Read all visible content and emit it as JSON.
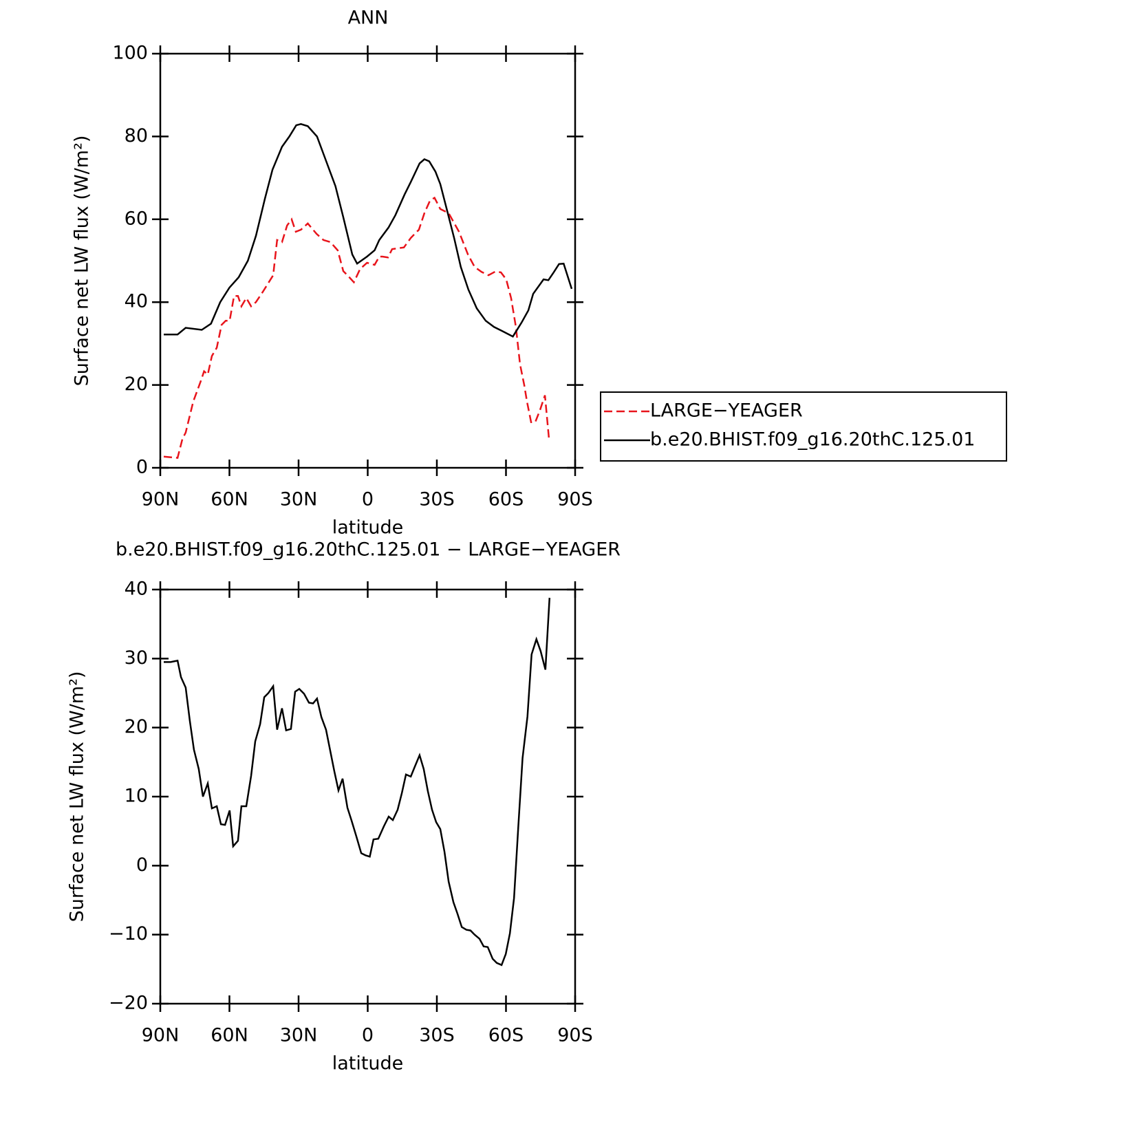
{
  "chart_data": [
    {
      "type": "line",
      "title": "ANN",
      "xlabel": "latitude",
      "ylabel": "Surface net LW flux (W/m²)",
      "xlim": [
        90,
        -90
      ],
      "ylim": [
        0,
        100
      ],
      "xticks": [
        {
          "value": 90,
          "label": "90N"
        },
        {
          "value": 60,
          "label": "60N"
        },
        {
          "value": 30,
          "label": "30N"
        },
        0,
        {
          "value": -30,
          "label": "30S"
        },
        {
          "value": -60,
          "label": "60S"
        },
        {
          "value": -90,
          "label": "90S"
        }
      ],
      "yticks": [
        0,
        20,
        40,
        60,
        80,
        100
      ],
      "legend": "right",
      "series": [
        {
          "name": "LARGE−YEAGER",
          "color": "#e8141b",
          "dash": true,
          "x": [
            88.5,
            82.5,
            80.4,
            79,
            75.7,
            72.4,
            71,
            69.4,
            67.6,
            65.5,
            63.4,
            61.6,
            59.9,
            58,
            56.3,
            54.8,
            52.7,
            50.6,
            48.5,
            45.5,
            41,
            39.3,
            37.2,
            35,
            33,
            31.2,
            29,
            26,
            22.2,
            19.2,
            16.2,
            13,
            10.6,
            8.8,
            6,
            3.3,
            0.3,
            -3,
            -5,
            -6.4,
            -8.8,
            -10.6,
            -15.7,
            -18.7,
            -22.2,
            -24.6,
            -27,
            -29,
            -31.5,
            -35.1,
            -39.6,
            -43.5,
            -46.4,
            -49.4,
            -52.4,
            -55.4,
            -57.8,
            -60.1,
            -62.2,
            -64.3,
            -66.1,
            -67.9,
            -69.1,
            -70.9,
            -72.7,
            -74.8,
            -76.9,
            -78.7
          ],
          "values": [
            2.7,
            2.4,
            7,
            8.5,
            16,
            21,
            23.3,
            22.5,
            27,
            29,
            34.5,
            35.5,
            35.5,
            41.5,
            41.5,
            39,
            41,
            39,
            40,
            42.5,
            46.5,
            55,
            54.5,
            58.5,
            60,
            57,
            57.5,
            59,
            56.5,
            55,
            54.5,
            52.5,
            47.5,
            46.5,
            44.8,
            48,
            49.5,
            49,
            51,
            51,
            50.8,
            52.8,
            53.2,
            55.5,
            57.5,
            61.5,
            64.5,
            65.2,
            62.5,
            61.5,
            57,
            51.5,
            48.5,
            47.3,
            46.5,
            47.4,
            47.2,
            45.5,
            41,
            34,
            25,
            20,
            16,
            11,
            11,
            14,
            17.5,
            6.8
          ]
        },
        {
          "name": "b.e20.BHIST.f09_g16.20thC.125.01",
          "color": "#000000",
          "dash": false,
          "x": [
            88.5,
            82.5,
            79,
            72,
            68,
            64,
            60,
            56,
            52,
            48.5,
            44.6,
            41.3,
            37.2,
            34,
            31,
            29,
            26,
            22,
            18,
            14,
            10.6,
            6.7,
            4.6,
            0.3,
            -3,
            -5,
            -9,
            -12,
            -16,
            -18.7,
            -22.5,
            -24.6,
            -26.7,
            -29.4,
            -31.5,
            -34.5,
            -37.5,
            -40.4,
            -43.7,
            -47.3,
            -51.2,
            -54.8,
            -58.4,
            -63,
            -66.7,
            -69.7,
            -71.8,
            -76.3,
            -78.4,
            -80.7,
            -83,
            -85,
            -88.5
          ],
          "values": [
            32.2,
            32.2,
            33.8,
            33.3,
            34.8,
            40,
            43.5,
            46,
            50,
            56,
            65,
            72,
            77.5,
            80,
            82.7,
            83,
            82.5,
            80,
            74,
            68,
            60.5,
            51.5,
            49.3,
            51,
            52.5,
            55,
            58,
            61,
            66,
            69,
            73.5,
            74.5,
            74,
            71.5,
            68.5,
            62,
            55.5,
            48.5,
            43,
            38.5,
            35.5,
            34,
            33,
            31.7,
            35,
            38,
            42,
            45.5,
            45.3,
            47.2,
            49.2,
            49.3,
            43.2
          ]
        }
      ]
    },
    {
      "type": "line",
      "title": "b.e20.BHIST.f09_g16.20thC.125.01 − LARGE−YEAGER",
      "xlabel": "latitude",
      "ylabel": "Surface net LW flux (W/m²)",
      "xlim": [
        90,
        -90
      ],
      "ylim": [
        -20,
        40
      ],
      "xticks": [
        {
          "value": 90,
          "label": "90N"
        },
        {
          "value": 60,
          "label": "60N"
        },
        {
          "value": 30,
          "label": "30N"
        },
        0,
        {
          "value": -30,
          "label": "30S"
        },
        {
          "value": -60,
          "label": "60S"
        },
        {
          "value": -90,
          "label": "90S"
        }
      ],
      "yticks": [
        {
          "value": -20,
          "label": "−20"
        },
        {
          "value": -10,
          "label": "−10"
        },
        0,
        10,
        20,
        30,
        40
      ],
      "series": [
        {
          "color": "#000000",
          "dash": false,
          "x": [
            88.5,
            85.5,
            82.5,
            81,
            79,
            77.2,
            75.4,
            73.3,
            71.5,
            69.4,
            67.6,
            65.5,
            63.7,
            61.9,
            59.9,
            58.4,
            56.3,
            54.8,
            52.7,
            50.6,
            48.8,
            46.7,
            44.9,
            43.1,
            41,
            39.3,
            37.2,
            35.4,
            33.3,
            31.5,
            29.7,
            27.6,
            25.5,
            23.7,
            22,
            20.1,
            18.1,
            16.3,
            14.5,
            12.7,
            10.9,
            8.8,
            7,
            4.9,
            2.8,
            1,
            -0.9,
            -2.5,
            -4.6,
            -7,
            -9.1,
            -10.9,
            -13,
            -14.8,
            -16.6,
            -18.7,
            -20.4,
            -22.5,
            -24.3,
            -26.1,
            -27.9,
            -29.7,
            -31.5,
            -33.3,
            -35.1,
            -37.2,
            -39,
            -40.8,
            -42.8,
            -44.6,
            -46.4,
            -48.5,
            -50.3,
            -52.1,
            -54.2,
            -56,
            -58.1,
            -59.9,
            -61.7,
            -63.5,
            -65.3,
            -67.2,
            -69.3,
            -71.1,
            -73.2,
            -75,
            -77.1,
            -78.9
          ],
          "values": [
            29.5,
            29.5,
            29.7,
            27.3,
            25.8,
            21,
            16.8,
            14,
            10,
            11.9,
            8.3,
            8.6,
            6,
            5.9,
            8,
            2.8,
            3.6,
            8.6,
            8.6,
            13,
            18,
            20.5,
            24.4,
            25,
            26,
            19.7,
            22.8,
            19.6,
            19.8,
            25.2,
            25.6,
            24.9,
            23.6,
            23.5,
            24.2,
            21.5,
            19.7,
            16.7,
            13.7,
            10.9,
            12.6,
            8.4,
            6.5,
            4.2,
            1.8,
            1.5,
            1.3,
            3.8,
            3.9,
            5.7,
            7.1,
            6.6,
            8.1,
            10.5,
            13.2,
            12.9,
            14.3,
            16,
            14,
            10.8,
            8.1,
            6.3,
            5.3,
            2,
            -2.3,
            -5.3,
            -7,
            -8.9,
            -9.3,
            -9.4,
            -10,
            -10.6,
            -11.7,
            -11.8,
            -13.5,
            -14.1,
            -14.4,
            -12.8,
            -9.8,
            -4.7,
            5.5,
            15.6,
            21.6,
            30.6,
            32.8,
            31.1,
            28.4,
            38.8
          ]
        }
      ]
    }
  ]
}
